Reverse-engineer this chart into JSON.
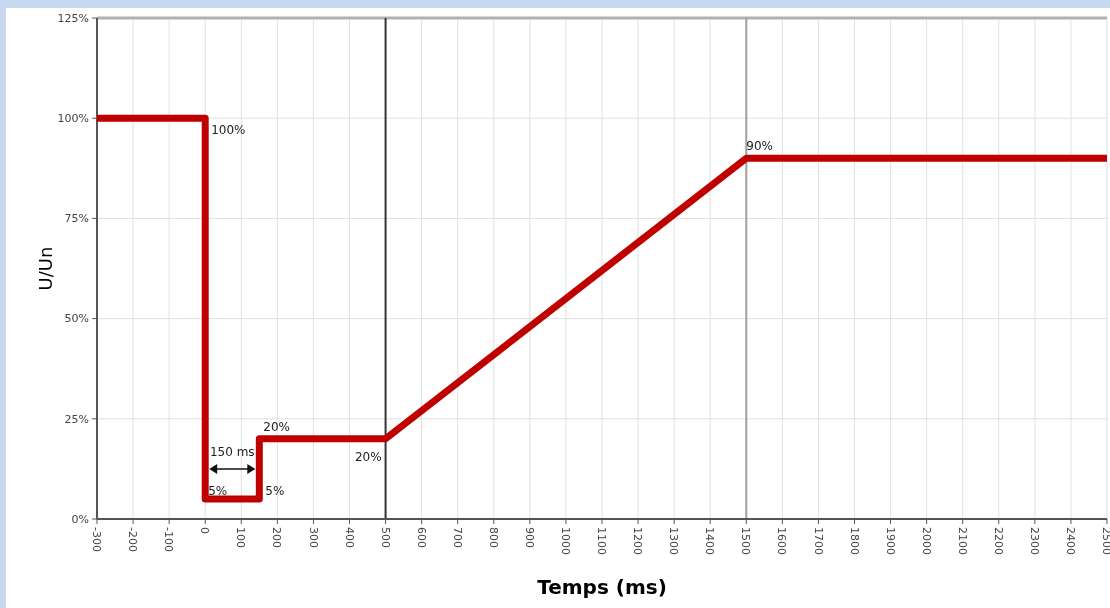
{
  "chart_data": {
    "type": "line",
    "xlabel": "Temps (ms)",
    "ylabel": "U/Un",
    "x": [
      -300,
      0,
      0,
      150,
      150,
      500,
      1500,
      2500
    ],
    "series": [
      {
        "color": "#c00000",
        "values": [
          100,
          100,
          5,
          5,
          20,
          20,
          90,
          90
        ]
      }
    ],
    "xlim": [
      -300,
      2500
    ],
    "xticks": [
      -300,
      -200,
      -100,
      0,
      100,
      200,
      300,
      400,
      500,
      600,
      700,
      800,
      900,
      1000,
      1100,
      1200,
      1300,
      1400,
      1500,
      1600,
      1700,
      1800,
      1900,
      2000,
      2100,
      2200,
      2300,
      2400,
      2500
    ],
    "ylim": [
      0,
      125
    ],
    "yticks": [
      {
        "value": 0,
        "label": "0%"
      },
      {
        "value": 25,
        "label": "25%"
      },
      {
        "value": 50,
        "label": "50%"
      },
      {
        "value": 75,
        "label": "75%"
      },
      {
        "value": 100,
        "label": "100%"
      },
      {
        "value": 125,
        "label": "125%"
      }
    ],
    "grid": true,
    "marker": "none",
    "line_style": "solid",
    "ref_lines": [
      {
        "axis": "x",
        "value": 500,
        "color": "#333333"
      },
      {
        "axis": "x",
        "value": 1500,
        "color": "#a0a0a0"
      }
    ],
    "annotations": [
      {
        "text": "100%",
        "x": 0,
        "y": 100
      },
      {
        "text": "5%",
        "x": 0,
        "y": 5
      },
      {
        "text": "5%",
        "x": 150,
        "y": 5
      },
      {
        "text": "20%",
        "x": 150,
        "y": 20
      },
      {
        "text": "20%",
        "x": 500,
        "y": 20
      },
      {
        "text": "90%",
        "x": 1500,
        "y": 90
      },
      "150 ms"
    ]
  }
}
